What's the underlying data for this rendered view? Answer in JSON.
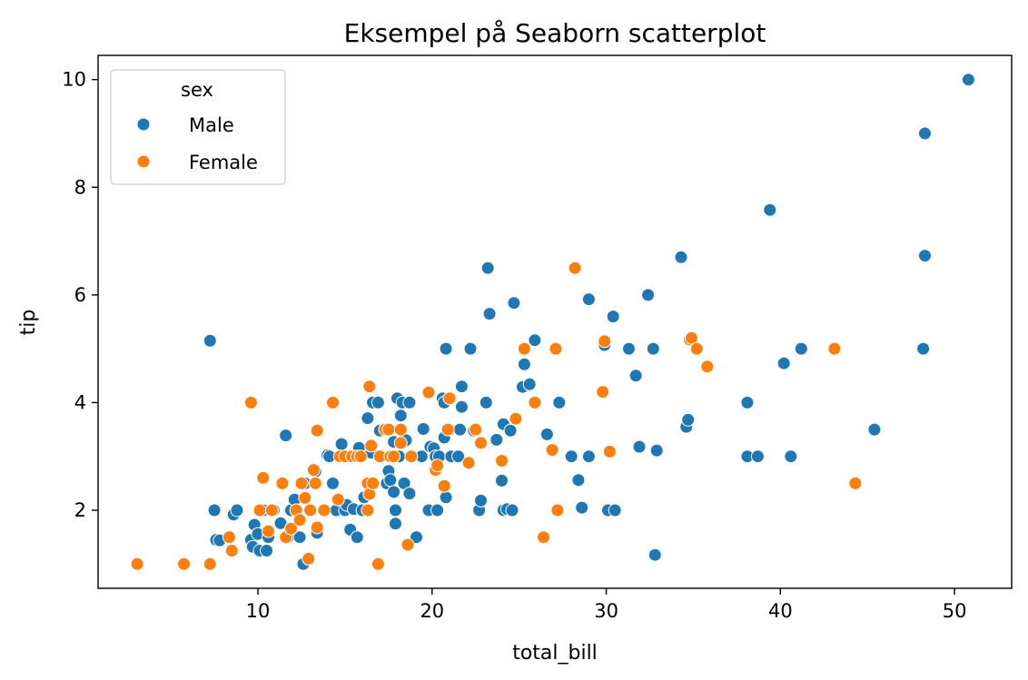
{
  "chart_data": {
    "type": "scatter",
    "title": "Eksempel på Seaborn scatterplot",
    "xlabel": "total_bill",
    "ylabel": "tip",
    "xlim": [
      0.82,
      53.28
    ],
    "ylim": [
      0.55,
      10.45
    ],
    "xticks": [
      10,
      20,
      30,
      40,
      50
    ],
    "yticks": [
      2,
      4,
      6,
      8,
      10
    ],
    "grid": false,
    "legend": {
      "title": "sex",
      "placement": "top-left"
    },
    "series": [
      {
        "name": "Male",
        "color": "#1f77b4",
        "points": [
          [
            7.25,
            5.15
          ],
          [
            7.5,
            2.0
          ],
          [
            7.6,
            1.45
          ],
          [
            7.8,
            1.44
          ],
          [
            8.6,
            1.92
          ],
          [
            8.8,
            2.0
          ],
          [
            9.6,
            1.45
          ],
          [
            9.7,
            1.32
          ],
          [
            9.8,
            1.73
          ],
          [
            10.0,
            1.56
          ],
          [
            10.1,
            1.25
          ],
          [
            10.3,
            2.0
          ],
          [
            10.5,
            1.25
          ],
          [
            10.6,
            1.5
          ],
          [
            10.9,
            2.0
          ],
          [
            11.3,
            1.76
          ],
          [
            11.6,
            3.39
          ],
          [
            11.7,
            1.5
          ],
          [
            11.9,
            2.0
          ],
          [
            12.1,
            2.2
          ],
          [
            12.4,
            1.5
          ],
          [
            12.6,
            1.0
          ],
          [
            12.7,
            2.5
          ],
          [
            13.0,
            2.0
          ],
          [
            13.3,
            2.72
          ],
          [
            13.4,
            1.58
          ],
          [
            13.8,
            2.0
          ],
          [
            14.0,
            3.02
          ],
          [
            14.1,
            3.0
          ],
          [
            14.3,
            2.5
          ],
          [
            14.5,
            2.0
          ],
          [
            14.8,
            3.23
          ],
          [
            15.0,
            2.0
          ],
          [
            15.1,
            2.1
          ],
          [
            15.3,
            1.64
          ],
          [
            15.4,
            3.0
          ],
          [
            15.5,
            2.02
          ],
          [
            15.7,
            1.5
          ],
          [
            15.8,
            3.16
          ],
          [
            16.0,
            2.0
          ],
          [
            16.1,
            2.24
          ],
          [
            16.3,
            3.71
          ],
          [
            16.5,
            3.07
          ],
          [
            16.6,
            4.0
          ],
          [
            16.9,
            4.0
          ],
          [
            17.0,
            3.48
          ],
          [
            17.3,
            3.5
          ],
          [
            17.4,
            2.5
          ],
          [
            17.5,
            2.73
          ],
          [
            17.6,
            2.56
          ],
          [
            17.8,
            3.27
          ],
          [
            17.8,
            2.34
          ],
          [
            17.9,
            1.75
          ],
          [
            17.9,
            2.0
          ],
          [
            18.0,
            4.08
          ],
          [
            18.1,
            3.0
          ],
          [
            18.2,
            3.76
          ],
          [
            18.3,
            4.0
          ],
          [
            18.4,
            2.5
          ],
          [
            18.5,
            3.3
          ],
          [
            18.7,
            2.31
          ],
          [
            18.7,
            4.0
          ],
          [
            19.1,
            1.5
          ],
          [
            19.4,
            3.0
          ],
          [
            19.5,
            3.51
          ],
          [
            19.8,
            2.0
          ],
          [
            19.9,
            3.18
          ],
          [
            20.1,
            3.15
          ],
          [
            20.2,
            3.0
          ],
          [
            20.3,
            2.0
          ],
          [
            20.4,
            3.0
          ],
          [
            20.6,
            4.08
          ],
          [
            20.7,
            3.35
          ],
          [
            20.7,
            4.0
          ],
          [
            20.8,
            5.0
          ],
          [
            20.8,
            2.24
          ],
          [
            21.0,
            3.5
          ],
          [
            21.1,
            3.0
          ],
          [
            21.5,
            3.0
          ],
          [
            21.6,
            3.5
          ],
          [
            21.7,
            3.92
          ],
          [
            21.7,
            4.3
          ],
          [
            22.2,
            5.0
          ],
          [
            22.4,
            3.48
          ],
          [
            22.7,
            2.0
          ],
          [
            22.8,
            2.18
          ],
          [
            23.1,
            4.0
          ],
          [
            23.2,
            6.5
          ],
          [
            23.3,
            5.65
          ],
          [
            23.7,
            3.31
          ],
          [
            24.0,
            2.55
          ],
          [
            24.1,
            3.6
          ],
          [
            24.1,
            2.0
          ],
          [
            24.3,
            2.02
          ],
          [
            24.5,
            3.48
          ],
          [
            24.6,
            2.0
          ],
          [
            24.7,
            5.85
          ],
          [
            25.2,
            4.29
          ],
          [
            25.3,
            4.71
          ],
          [
            25.6,
            4.34
          ],
          [
            25.9,
            5.16
          ],
          [
            26.6,
            3.41
          ],
          [
            27.3,
            4.0
          ],
          [
            28.0,
            3.0
          ],
          [
            28.4,
            2.56
          ],
          [
            28.6,
            2.05
          ],
          [
            29.0,
            5.92
          ],
          [
            29.0,
            3.0
          ],
          [
            29.9,
            5.07
          ],
          [
            30.1,
            2.0
          ],
          [
            30.4,
            5.6
          ],
          [
            30.5,
            2.0
          ],
          [
            31.3,
            5.0
          ],
          [
            31.7,
            4.5
          ],
          [
            31.9,
            3.18
          ],
          [
            32.4,
            6.0
          ],
          [
            32.7,
            5.0
          ],
          [
            32.8,
            1.17
          ],
          [
            32.9,
            3.11
          ],
          [
            34.3,
            6.7
          ],
          [
            34.6,
            3.55
          ],
          [
            34.7,
            3.68
          ],
          [
            38.1,
            4.0
          ],
          [
            38.1,
            3.0
          ],
          [
            38.7,
            3.0
          ],
          [
            39.4,
            7.58
          ],
          [
            40.2,
            4.73
          ],
          [
            40.6,
            3.0
          ],
          [
            41.2,
            5.0
          ],
          [
            45.4,
            3.5
          ],
          [
            48.2,
            5.0
          ],
          [
            48.3,
            6.73
          ],
          [
            48.3,
            9.0
          ],
          [
            50.8,
            10.0
          ]
        ]
      },
      {
        "name": "Female",
        "color": "#ff7f0e",
        "points": [
          [
            3.07,
            1.0
          ],
          [
            5.75,
            1.0
          ],
          [
            7.25,
            1.0
          ],
          [
            8.35,
            1.5
          ],
          [
            8.5,
            1.25
          ],
          [
            9.6,
            4.0
          ],
          [
            10.1,
            2.0
          ],
          [
            10.3,
            2.6
          ],
          [
            10.6,
            1.61
          ],
          [
            10.8,
            2.0
          ],
          [
            11.4,
            2.5
          ],
          [
            11.6,
            1.5
          ],
          [
            11.9,
            1.66
          ],
          [
            12.2,
            2.0
          ],
          [
            12.4,
            1.82
          ],
          [
            12.5,
            2.5
          ],
          [
            12.7,
            2.23
          ],
          [
            12.9,
            1.1
          ],
          [
            13.0,
            2.0
          ],
          [
            13.2,
            2.75
          ],
          [
            13.3,
            2.5
          ],
          [
            13.4,
            1.68
          ],
          [
            13.4,
            3.48
          ],
          [
            13.8,
            2.0
          ],
          [
            14.3,
            4.0
          ],
          [
            14.6,
            2.2
          ],
          [
            14.7,
            3.0
          ],
          [
            15.0,
            3.0
          ],
          [
            15.4,
            3.0
          ],
          [
            15.7,
            3.0
          ],
          [
            15.9,
            3.0
          ],
          [
            16.3,
            2.0
          ],
          [
            16.3,
            2.5
          ],
          [
            16.4,
            4.3
          ],
          [
            16.4,
            2.3
          ],
          [
            16.5,
            3.2
          ],
          [
            16.6,
            2.5
          ],
          [
            16.9,
            1.0
          ],
          [
            17.0,
            3.0
          ],
          [
            17.3,
            3.5
          ],
          [
            17.5,
            3.5
          ],
          [
            17.6,
            3.0
          ],
          [
            17.8,
            3.0
          ],
          [
            18.2,
            3.5
          ],
          [
            18.2,
            3.25
          ],
          [
            18.6,
            1.36
          ],
          [
            18.8,
            3.0
          ],
          [
            19.8,
            4.19
          ],
          [
            20.2,
            2.75
          ],
          [
            20.3,
            2.83
          ],
          [
            20.7,
            2.45
          ],
          [
            20.9,
            3.5
          ],
          [
            21.0,
            4.08
          ],
          [
            22.1,
            2.88
          ],
          [
            22.5,
            3.5
          ],
          [
            22.8,
            3.25
          ],
          [
            24.0,
            2.92
          ],
          [
            24.8,
            3.7
          ],
          [
            25.3,
            5.0
          ],
          [
            25.9,
            4.0
          ],
          [
            26.4,
            1.5
          ],
          [
            26.9,
            3.12
          ],
          [
            27.1,
            5.0
          ],
          [
            27.2,
            2.0
          ],
          [
            28.2,
            6.5
          ],
          [
            29.8,
            4.2
          ],
          [
            29.9,
            5.14
          ],
          [
            30.2,
            3.09
          ],
          [
            34.8,
            5.17
          ],
          [
            34.9,
            5.2
          ],
          [
            35.2,
            5.0
          ],
          [
            35.8,
            4.67
          ],
          [
            43.1,
            5.0
          ],
          [
            44.3,
            2.5
          ]
        ]
      }
    ]
  }
}
